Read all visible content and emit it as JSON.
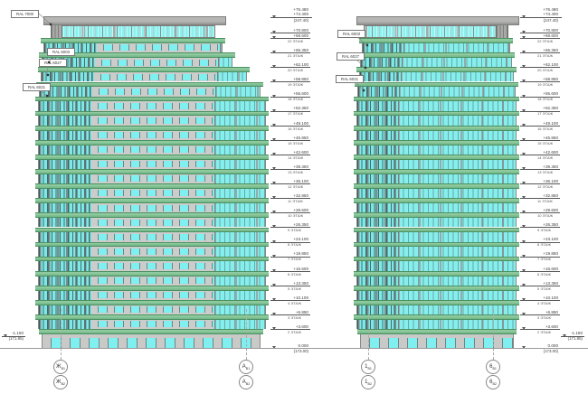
{
  "drawing": {
    "type": "building elevations",
    "sheet_bg": "#ffffff"
  },
  "ral_labels": {
    "left": [
      "RAL 7000",
      "RAL 6003",
      "RAL 6027",
      "RAL 6021"
    ],
    "right": [
      "RAL 6003",
      "RAL 6027",
      "RAL 6021"
    ]
  },
  "levels": {
    "top": {
      "value_upper": "+76.480",
      "value_lower": "+74.400",
      "absolute": "(247.40)"
    },
    "roof": {
      "value": "+70.800"
    },
    "floors": [
      {
        "value": "+68.600",
        "floor": "22 ЭТАЖ"
      },
      {
        "value": "+65.350",
        "floor": "21 ЭТАЖ"
      },
      {
        "value": "+62.100",
        "floor": "20 ЭТАЖ"
      },
      {
        "value": "+58.850",
        "floor": "19 ЭТАЖ"
      },
      {
        "value": "+55.600",
        "floor": "18 ЭТАЖ"
      },
      {
        "value": "+52.350",
        "floor": "17 ЭТАЖ"
      },
      {
        "value": "+49.100",
        "floor": "16 ЭТАЖ"
      },
      {
        "value": "+45.850",
        "floor": "15 ЭТАЖ"
      },
      {
        "value": "+42.600",
        "floor": "14 ЭТАЖ"
      },
      {
        "value": "+39.350",
        "floor": "13 ЭТАЖ"
      },
      {
        "value": "+36.100",
        "floor": "12 ЭТАЖ"
      },
      {
        "value": "+32.850",
        "floor": "11 ЭТАЖ"
      },
      {
        "value": "+29.600",
        "floor": "10 ЭТАЖ"
      },
      {
        "value": "+26.350",
        "floor": "9 ЭТАЖ"
      },
      {
        "value": "+23.100",
        "floor": "8 ЭТАЖ"
      },
      {
        "value": "+19.850",
        "floor": "7 ЭТАЖ"
      },
      {
        "value": "+16.600",
        "floor": "6 ЭТАЖ"
      },
      {
        "value": "+13.350",
        "floor": "5 ЭТАЖ"
      },
      {
        "value": "+10.100",
        "floor": "4 ЭТАЖ"
      },
      {
        "value": "+6.850",
        "floor": "3 ЭТАЖ"
      },
      {
        "value": "+3.600",
        "floor": "2 ЭТАЖ"
      }
    ],
    "ground": {
      "value": "0.000",
      "absolute": "(173.00)"
    },
    "site_left": {
      "value": "-1.150",
      "absolute": "(171.85)"
    },
    "site_right": {
      "value": "-1.150",
      "absolute": "(171.85)"
    }
  },
  "axes": {
    "left_building": [
      {
        "main": "Ж",
        "sub": "В1"
      },
      {
        "main": "Ж",
        "sub": "В2"
      },
      {
        "main": "А",
        "sub": "В1"
      },
      {
        "main": "А",
        "sub": "В2"
      }
    ],
    "right_building": [
      {
        "main": "1",
        "sub": "В1"
      },
      {
        "main": "1",
        "sub": "В2"
      },
      {
        "main": "6",
        "sub": "В1"
      },
      {
        "main": "6",
        "sub": "В2"
      }
    ]
  },
  "buildings": {
    "left": {
      "upper_floors": 20,
      "has_tech_top_floor": true
    },
    "right": {
      "upper_floors": 20,
      "has_tech_top_floor": true
    }
  },
  "colors": {
    "balcony_band": "#8fca9e",
    "band_edge": "#4a9162",
    "glass": "#86efed",
    "wall": "#cccccb",
    "roof_slab": "#b5b5b3",
    "annotation": "#3c3c3c"
  }
}
